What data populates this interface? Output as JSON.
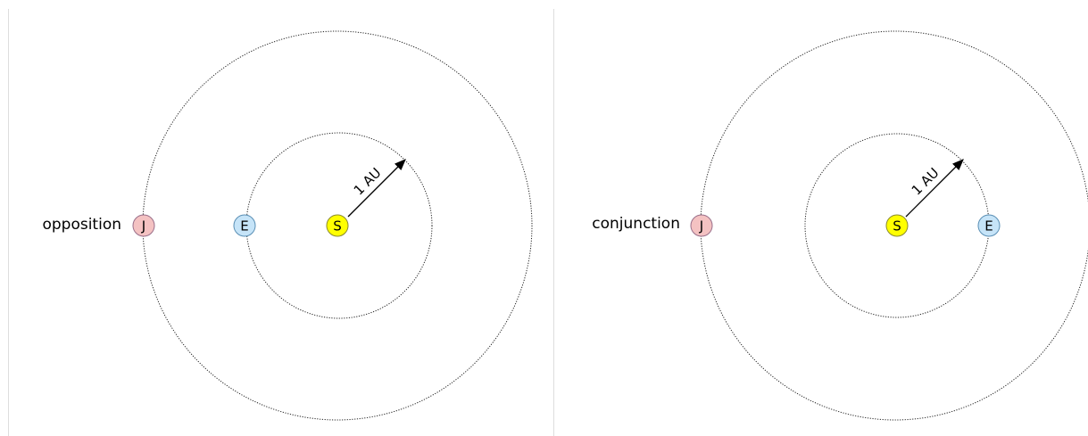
{
  "panels": [
    {
      "label": "opposition",
      "sun": "S",
      "earth": "E",
      "jupiter": "J",
      "distance": "1 AU"
    },
    {
      "label": "conjunction",
      "sun": "S",
      "earth": "E",
      "jupiter": "J",
      "distance": "1 AU"
    }
  ]
}
